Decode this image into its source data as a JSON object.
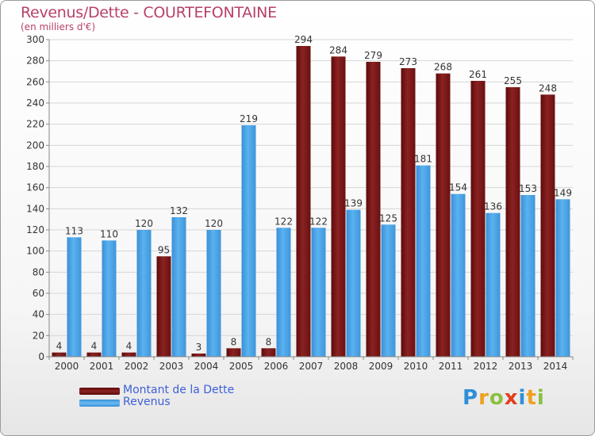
{
  "title": "Revenus/Dette - COURTEFONTAINE",
  "subtitle": "(en milliers d'€)",
  "logo": {
    "letters": [
      {
        "ch": "P",
        "color": "#2f8fd8"
      },
      {
        "ch": "r",
        "color": "#f0a020"
      },
      {
        "ch": "o",
        "color": "#8ac040"
      },
      {
        "ch": "x",
        "color": "#e04020"
      },
      {
        "ch": "i",
        "color": "#2f8fd8"
      },
      {
        "ch": "t",
        "color": "#f0a020"
      },
      {
        "ch": "i",
        "color": "#8ac040"
      }
    ]
  },
  "chart_data": {
    "type": "bar",
    "title": "Revenus/Dette - COURTEFONTAINE",
    "subtitle": "(en milliers d'€)",
    "xlabel": "",
    "ylabel": "",
    "categories": [
      "2000",
      "2001",
      "2002",
      "2003",
      "2004",
      "2005",
      "2006",
      "2007",
      "2008",
      "2009",
      "2010",
      "2011",
      "2012",
      "2013",
      "2014"
    ],
    "series": [
      {
        "name": "Montant de la Dette",
        "color": "#7a1515",
        "values": [
          4,
          4,
          4,
          95,
          3,
          8,
          8,
          294,
          284,
          279,
          273,
          268,
          261,
          255,
          248
        ]
      },
      {
        "name": "Revenus",
        "color": "#4aa3e6",
        "values": [
          113,
          110,
          120,
          132,
          120,
          219,
          122,
          122,
          139,
          125,
          181,
          154,
          136,
          153,
          149
        ]
      }
    ],
    "ylim": [
      0,
      300
    ],
    "yticks": [
      0,
      20,
      40,
      60,
      80,
      100,
      120,
      140,
      160,
      180,
      200,
      220,
      240,
      260,
      280,
      300
    ],
    "grid": true,
    "legend": "bottom-left"
  }
}
